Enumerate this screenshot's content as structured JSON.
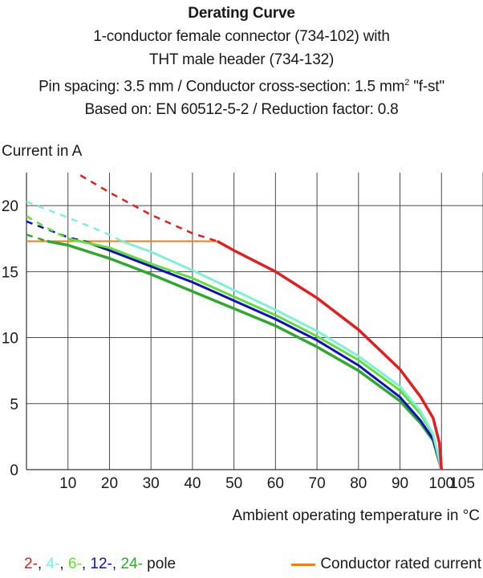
{
  "title_lines": {
    "line1": "Derating Curve",
    "line2": "1-conductor female connector (734-102) with",
    "line3": "THT male header (734-132)",
    "line4_pre": "Pin spacing: 3.5 mm / Conductor cross-section: 1.5 mm",
    "line4_sup": "2",
    "line4_post": " \"f-st\"",
    "line5": "Based on: EN 60512-5-2 / Reduction factor: 0.8"
  },
  "legend": {
    "poles": [
      {
        "label": "2-",
        "color": "#e02020"
      },
      {
        "label": "4-",
        "color": "#80f0d8"
      },
      {
        "label": "6-",
        "color": "#60e030"
      },
      {
        "label": "12-",
        "color": "#1010c0"
      },
      {
        "label": "24-",
        "color": "#30a830"
      }
    ],
    "pole_suffix": " pole",
    "rated_label": "Conductor rated current",
    "rated_color": "#f08010"
  },
  "chart_data": {
    "type": "line",
    "xlabel": "Ambient operating temperature in °C",
    "ylabel": "Current in A",
    "xlim": [
      0,
      110
    ],
    "ylim": [
      0,
      22.5
    ],
    "xticks": [
      10,
      20,
      30,
      40,
      50,
      60,
      70,
      80,
      90,
      100,
      105
    ],
    "yticks": [
      0,
      5,
      10,
      15,
      20
    ],
    "grid_x": [
      10,
      20,
      30,
      40,
      50,
      60,
      70,
      80,
      90,
      100,
      110
    ],
    "grid_y": [
      5,
      10,
      15,
      20
    ],
    "rated_current": {
      "value": 17.3,
      "x_range": [
        0,
        46
      ],
      "color": "#f08010"
    },
    "series": [
      {
        "name": "24-",
        "color": "#30a830",
        "dashed_until": 5,
        "points": [
          [
            0,
            17.8
          ],
          [
            5,
            17.3
          ],
          [
            10,
            17.0
          ],
          [
            20,
            16.0
          ],
          [
            30,
            14.8
          ],
          [
            40,
            13.5
          ],
          [
            50,
            12.2
          ],
          [
            60,
            10.9
          ],
          [
            70,
            9.3
          ],
          [
            80,
            7.5
          ],
          [
            90,
            5.2
          ],
          [
            95,
            3.5
          ],
          [
            98,
            2.2
          ],
          [
            100,
            0
          ]
        ]
      },
      {
        "name": "12-",
        "color": "#1010c0",
        "dashed_until": 14,
        "points": [
          [
            0,
            18.8
          ],
          [
            5,
            18.2
          ],
          [
            10,
            17.6
          ],
          [
            14,
            17.3
          ],
          [
            20,
            16.6
          ],
          [
            30,
            15.4
          ],
          [
            40,
            14.2
          ],
          [
            50,
            12.8
          ],
          [
            60,
            11.4
          ],
          [
            70,
            9.8
          ],
          [
            80,
            7.9
          ],
          [
            90,
            5.5
          ],
          [
            95,
            3.7
          ],
          [
            98,
            2.3
          ],
          [
            100,
            0
          ]
        ]
      },
      {
        "name": "6-",
        "color": "#60e030",
        "dashed_until": 10,
        "points": [
          [
            0,
            19.2
          ],
          [
            5,
            18.3
          ],
          [
            10,
            17.5
          ],
          [
            20,
            16.8
          ],
          [
            30,
            15.6
          ],
          [
            40,
            14.5
          ],
          [
            50,
            13.1
          ],
          [
            60,
            11.7
          ],
          [
            70,
            10.1
          ],
          [
            80,
            8.3
          ],
          [
            90,
            6.0
          ],
          [
            95,
            4.2
          ],
          [
            98,
            2.6
          ],
          [
            100,
            0
          ]
        ]
      },
      {
        "name": "4-",
        "color": "#80f0d8",
        "dashed_until": 23,
        "points": [
          [
            0,
            20.3
          ],
          [
            10,
            19.1
          ],
          [
            20,
            17.8
          ],
          [
            23,
            17.3
          ],
          [
            30,
            16.5
          ],
          [
            40,
            15.1
          ],
          [
            50,
            13.6
          ],
          [
            60,
            12.1
          ],
          [
            70,
            10.5
          ],
          [
            80,
            8.6
          ],
          [
            90,
            6.3
          ],
          [
            95,
            4.4
          ],
          [
            98,
            2.7
          ],
          [
            100,
            0
          ]
        ]
      },
      {
        "name": "2-",
        "color": "#e02020",
        "dashed_until": 46,
        "points": [
          [
            13,
            22.3
          ],
          [
            20,
            21.0
          ],
          [
            30,
            19.3
          ],
          [
            40,
            17.9
          ],
          [
            46,
            17.3
          ],
          [
            50,
            16.6
          ],
          [
            60,
            15.0
          ],
          [
            70,
            13.0
          ],
          [
            80,
            10.6
          ],
          [
            90,
            7.6
          ],
          [
            95,
            5.5
          ],
          [
            98,
            3.9
          ],
          [
            99.5,
            2.0
          ],
          [
            100,
            0
          ]
        ]
      }
    ]
  }
}
